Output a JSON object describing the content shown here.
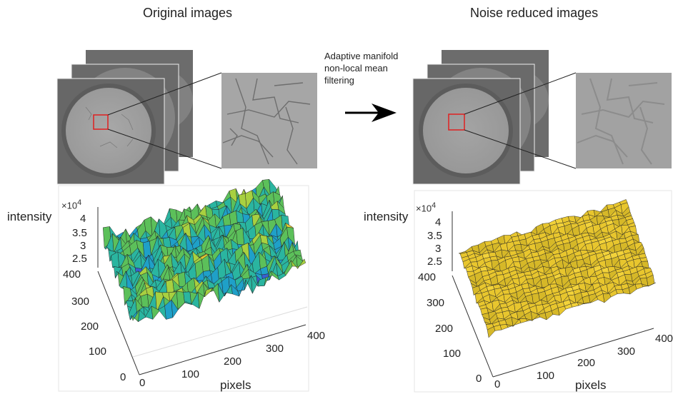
{
  "titles": {
    "original": "Original images",
    "reduced": "Noise reduced images"
  },
  "process_step": "Adaptive manifold\nnon-local mean\nfiltering",
  "plots": [
    {
      "id": "original",
      "zlabel": "intensity",
      "xlabel": "pixels",
      "z_exponent_base": "×10",
      "z_exponent_power": "4",
      "z_ticks": [
        "4",
        "3.5",
        "3",
        "2.5"
      ],
      "y_ticks": [
        "400",
        "300",
        "200",
        "100",
        "0"
      ],
      "x_ticks": [
        "0",
        "100",
        "200",
        "300",
        "400"
      ]
    },
    {
      "id": "reduced",
      "zlabel": "intensity",
      "xlabel": "pixels",
      "z_exponent_base": "×10",
      "z_exponent_power": "4",
      "z_ticks": [
        "4",
        "3.5",
        "3",
        "2.5"
      ],
      "y_ticks": [
        "400",
        "300",
        "200",
        "100",
        "0"
      ],
      "x_ticks": [
        "0",
        "100",
        "200",
        "300",
        "400"
      ]
    }
  ],
  "colors": {
    "roi_box": "#e02020",
    "arrow": "#000000",
    "surface_noisy": [
      "#3a5fd0",
      "#1fa0c8",
      "#2ab5a0",
      "#5cc05a",
      "#a8d040",
      "#e6c830"
    ],
    "surface_smooth": [
      "#f2d23a",
      "#e8c62e",
      "#d6b828",
      "#3ab0a8"
    ]
  }
}
